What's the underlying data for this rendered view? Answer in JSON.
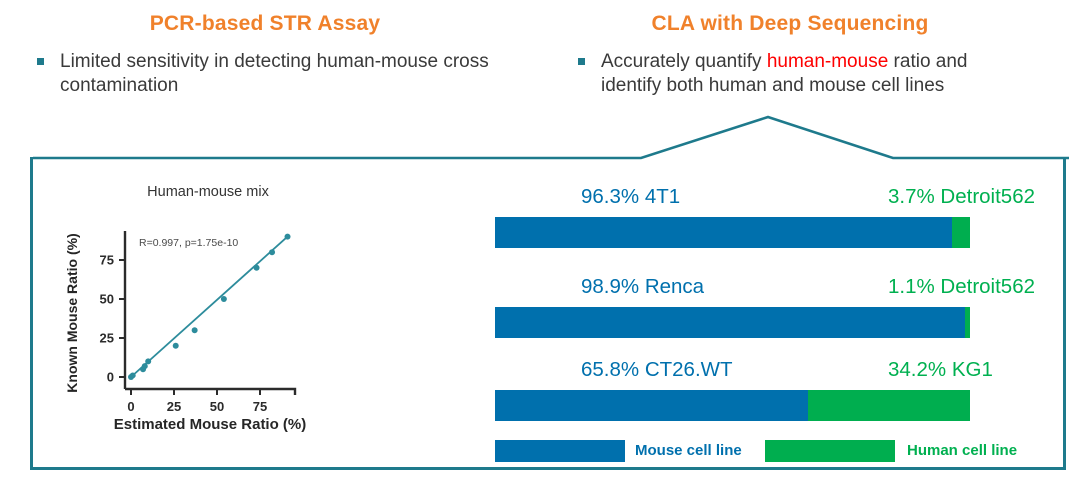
{
  "slide": {
    "left": {
      "heading": "PCR-based STR Assay",
      "bullet": {
        "line1": "Limited sensitivity in detecting human-mouse cross",
        "line2": "contamination"
      }
    },
    "right": {
      "heading": "CLA with Deep Sequencing",
      "bullet": {
        "line1_segments": [
          {
            "text": "Accurately quantify ",
            "color": "#3a3a3a"
          },
          {
            "text": "human-mouse",
            "color": "#fe0000"
          },
          {
            "text": " ratio and",
            "color": "#3a3a3a"
          }
        ],
        "line2": "identify both human and mouse cell lines"
      }
    }
  },
  "colors": {
    "heading_orange": "#f0812b",
    "box_border_teal": "#1e7a8c",
    "scatter_teal": "#2d8c9c",
    "mouse_blue": "#0070ad",
    "human_green": "#00ae4f",
    "human_green_text": "#00b050",
    "body_text": "#3a3a3a",
    "highlight_red": "#fe0000"
  },
  "chart_data": [
    {
      "type": "scatter",
      "title": "Human-mouse mix",
      "xlabel": "Estimated Mouse Ratio (%)",
      "ylabel": "Known Mouse Ratio (%)",
      "annotation": "R=0.997, p=1.75e-10",
      "points": [
        [
          0,
          0
        ],
        [
          1,
          1
        ],
        [
          7,
          5
        ],
        [
          8,
          7
        ],
        [
          10,
          10
        ],
        [
          26,
          20
        ],
        [
          37,
          30
        ],
        [
          54,
          50
        ],
        [
          73,
          70
        ],
        [
          82,
          80
        ],
        [
          91,
          90
        ]
      ],
      "fit_line": [
        [
          0,
          0
        ],
        [
          92,
          91
        ]
      ],
      "xticks": [
        0,
        25,
        50,
        75
      ],
      "yticks": [
        0,
        25,
        50,
        75
      ],
      "xlim": [
        -4,
        98
      ],
      "ylim": [
        -8,
        100
      ],
      "grid": false,
      "legend_position": "none",
      "marker_color": "#2d8c9c"
    },
    {
      "type": "bar",
      "variant": "horizontal-stacked-100pct",
      "rows": [
        {
          "mouse_label": "96.3% 4T1",
          "mouse_value": 96.3,
          "human_label": "3.7% Detroit562",
          "human_value": 3.7
        },
        {
          "mouse_label": "98.9% Renca",
          "mouse_value": 98.9,
          "human_label": "1.1% Detroit562",
          "human_value": 1.1
        },
        {
          "mouse_label": "65.8% CT26.WT",
          "mouse_value": 65.8,
          "human_label": "34.2% KG1",
          "human_value": 34.2
        }
      ],
      "legend": [
        {
          "label": "Mouse cell line",
          "color": "#0070ad"
        },
        {
          "label": "Human cell line",
          "color": "#00ae4f"
        }
      ],
      "xlim": [
        0,
        100
      ],
      "grid": false
    }
  ]
}
